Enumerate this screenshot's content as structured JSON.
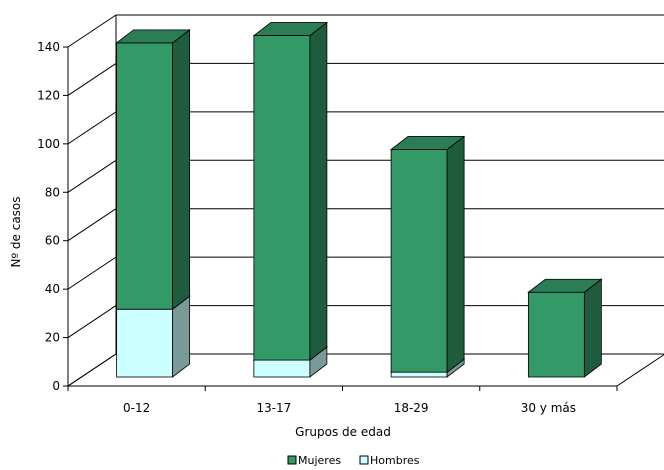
{
  "chart_data": {
    "type": "bar",
    "stacked": true,
    "three_d": true,
    "categories": [
      "0-12",
      "13-17",
      "18-29",
      "30 y más"
    ],
    "series": [
      {
        "name": "Hombres",
        "values": [
          28,
          7,
          2,
          0
        ],
        "color": "#ccffff"
      },
      {
        "name": "Mujeres",
        "values": [
          110,
          134,
          92,
          35
        ],
        "color": "#339966"
      }
    ],
    "xlabel": "Grupos de edad",
    "ylabel": "Nº de casos",
    "ylim": [
      0,
      140
    ],
    "yticks": [
      0,
      20,
      40,
      60,
      80,
      100,
      120,
      140
    ],
    "grid": true,
    "legend_position": "bottom"
  }
}
